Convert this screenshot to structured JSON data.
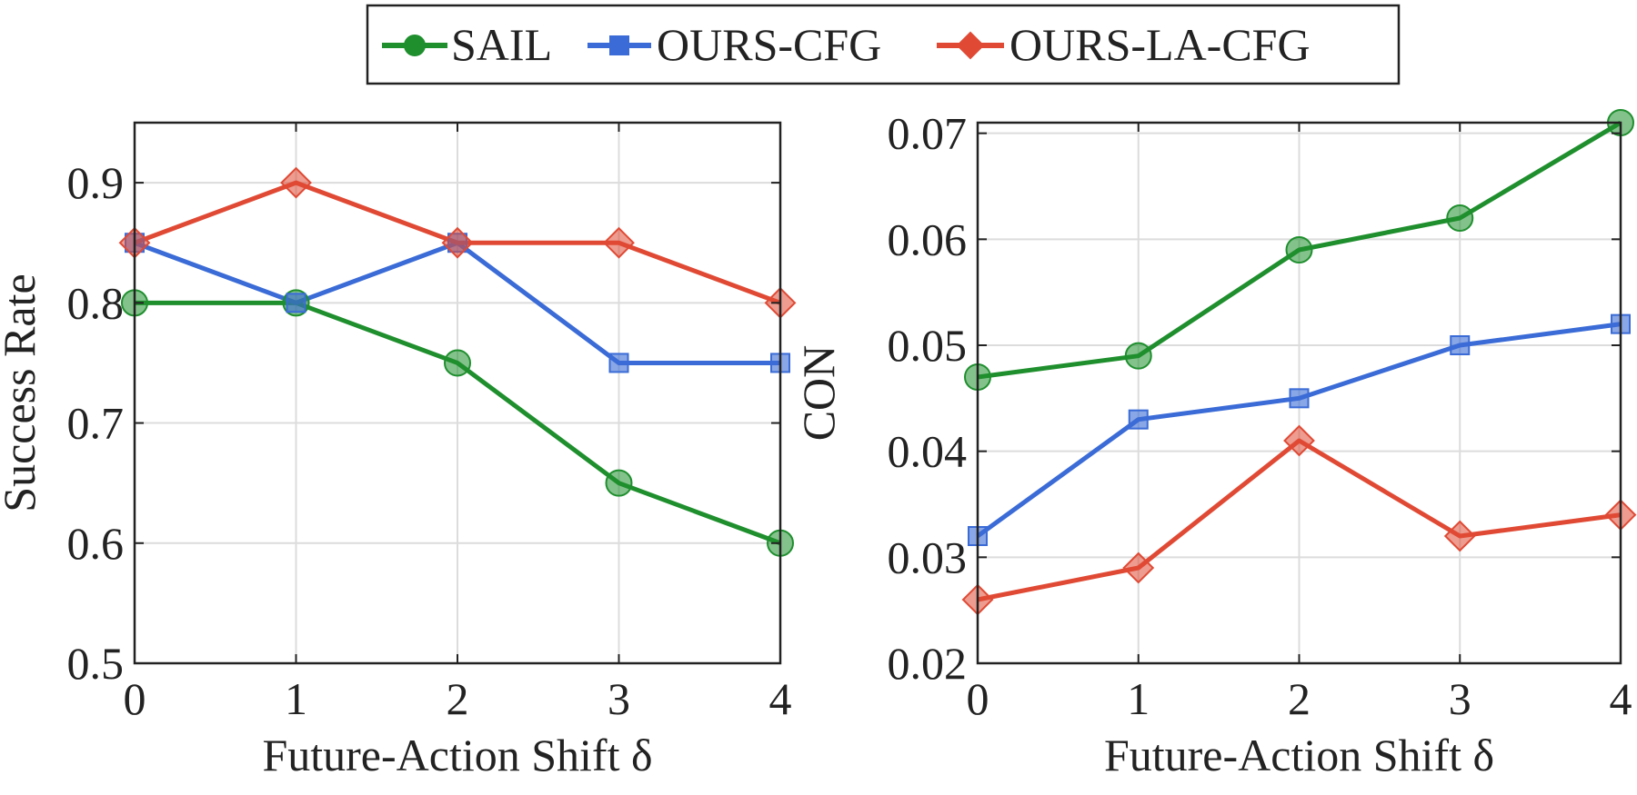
{
  "legend": {
    "placement": "top-center",
    "entries": [
      {
        "label": "SAIL",
        "color": "#1f8f2e",
        "marker": "circle"
      },
      {
        "label": "OURS-CFG",
        "color": "#3a6bd6",
        "marker": "square"
      },
      {
        "label": "OURS-LA-CFG",
        "color": "#e04a35",
        "marker": "diamond"
      }
    ]
  },
  "chart_data": [
    {
      "type": "line",
      "xlabel": "Future-Action Shift δ",
      "ylabel": "Success Rate",
      "x": [
        0,
        1,
        2,
        3,
        4
      ],
      "xlim": [
        0,
        4
      ],
      "ylim": [
        0.5,
        0.95
      ],
      "xticks": [
        "0",
        "1",
        "2",
        "3",
        "4"
      ],
      "yticks": [
        0.5,
        0.6,
        0.7,
        0.8,
        0.9
      ],
      "ytick_labels": [
        "0.5",
        "0.6",
        "0.7",
        "0.8",
        "0.9"
      ],
      "grid": true,
      "series": [
        {
          "name": "SAIL",
          "color": "#1f8f2e",
          "marker": "circle",
          "values": [
            0.8,
            0.8,
            0.75,
            0.65,
            0.6
          ]
        },
        {
          "name": "OURS-CFG",
          "color": "#3a6bd6",
          "marker": "square",
          "values": [
            0.85,
            0.8,
            0.85,
            0.75,
            0.75
          ]
        },
        {
          "name": "OURS-LA-CFG",
          "color": "#e04a35",
          "marker": "diamond",
          "values": [
            0.85,
            0.9,
            0.85,
            0.85,
            0.8
          ]
        }
      ]
    },
    {
      "type": "line",
      "xlabel": "Future-Action Shift δ",
      "ylabel": "CON",
      "x": [
        0,
        1,
        2,
        3,
        4
      ],
      "xlim": [
        0,
        4
      ],
      "ylim": [
        0.02,
        0.071
      ],
      "xticks": [
        "0",
        "1",
        "2",
        "3",
        "4"
      ],
      "yticks": [
        0.02,
        0.03,
        0.04,
        0.05,
        0.06,
        0.07
      ],
      "ytick_labels": [
        "0.02",
        "0.03",
        "0.04",
        "0.05",
        "0.06",
        "0.07"
      ],
      "grid": true,
      "series": [
        {
          "name": "SAIL",
          "color": "#1f8f2e",
          "marker": "circle",
          "values": [
            0.047,
            0.049,
            0.059,
            0.062,
            0.071
          ]
        },
        {
          "name": "OURS-CFG",
          "color": "#3a6bd6",
          "marker": "square",
          "values": [
            0.032,
            0.043,
            0.045,
            0.05,
            0.052
          ]
        },
        {
          "name": "OURS-LA-CFG",
          "color": "#e04a35",
          "marker": "diamond",
          "values": [
            0.026,
            0.029,
            0.041,
            0.032,
            0.034
          ]
        }
      ]
    }
  ]
}
